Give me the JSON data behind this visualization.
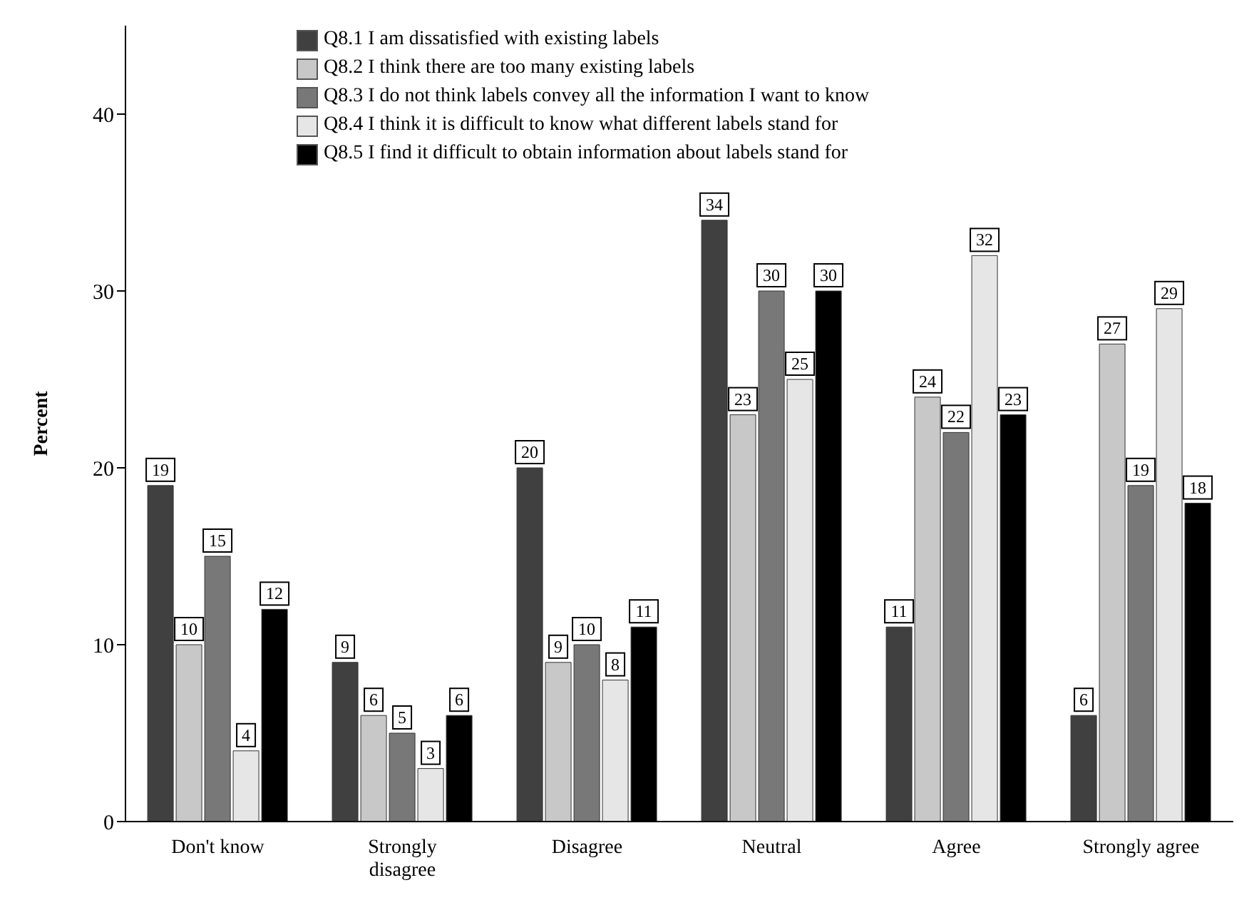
{
  "chart_data": {
    "type": "bar",
    "ylabel": "Percent",
    "categories": [
      "Don't know",
      "Strongly disagree",
      "Disagree",
      "Neutral",
      "Agree",
      "Strongly agree"
    ],
    "series": [
      {
        "name": "Q8.1 I am dissatisfied with existing labels",
        "color": "#404040",
        "values": [
          19,
          9,
          20,
          34,
          11,
          6
        ]
      },
      {
        "name": "Q8.2 I think there are too many existing labels",
        "color": "#c8c8c8",
        "values": [
          10,
          6,
          9,
          23,
          24,
          27
        ]
      },
      {
        "name": "Q8.3 I do not think labels convey all the information I want to know",
        "color": "#787878",
        "values": [
          15,
          5,
          10,
          30,
          22,
          19
        ]
      },
      {
        "name": "Q8.4 I think it is difficult to know what different labels stand for",
        "color": "#e6e6e6",
        "values": [
          4,
          3,
          8,
          25,
          32,
          29
        ]
      },
      {
        "name": "Q8.5 I find it difficult to obtain information about labels stand for",
        "color": "#000000",
        "values": [
          12,
          6,
          11,
          30,
          23,
          18
        ]
      }
    ],
    "ylim": [
      0,
      45
    ],
    "yticks": [
      0,
      10,
      20,
      30,
      40
    ],
    "grid": false,
    "legend": "top",
    "data_labels": true
  }
}
